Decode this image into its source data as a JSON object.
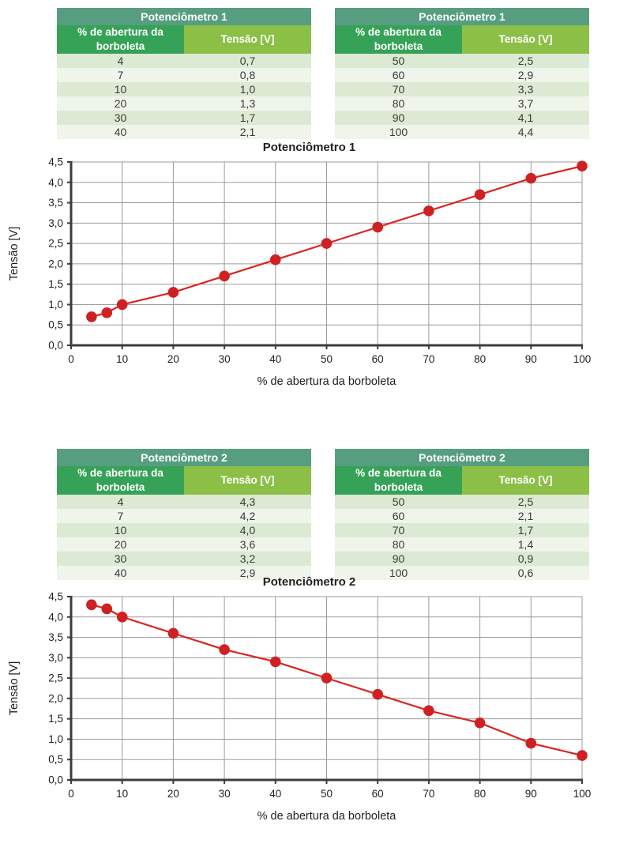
{
  "tables": [
    {
      "title": "Potenciômetro 1",
      "columns": [
        "% de abertura da borboleta",
        "Tensão [V]"
      ],
      "rows": [
        [
          "4",
          "0,7"
        ],
        [
          "7",
          "0,8"
        ],
        [
          "10",
          "1,0"
        ],
        [
          "20",
          "1,3"
        ],
        [
          "30",
          "1,7"
        ],
        [
          "40",
          "2,1"
        ]
      ]
    },
    {
      "title": "Potenciômetro 1",
      "columns": [
        "% de abertura da borboleta",
        "Tensão [V]"
      ],
      "rows": [
        [
          "50",
          "2,5"
        ],
        [
          "60",
          "2,9"
        ],
        [
          "70",
          "3,3"
        ],
        [
          "80",
          "3,7"
        ],
        [
          "90",
          "4,1"
        ],
        [
          "100",
          "4,4"
        ]
      ]
    },
    {
      "title": "Potenciômetro 2",
      "columns": [
        "% de abertura da borboleta",
        "Tensão [V]"
      ],
      "rows": [
        [
          "4",
          "4,3"
        ],
        [
          "7",
          "4,2"
        ],
        [
          "10",
          "4,0"
        ],
        [
          "20",
          "3,6"
        ],
        [
          "30",
          "3,2"
        ],
        [
          "40",
          "2,9"
        ]
      ]
    },
    {
      "title": "Potenciômetro 2",
      "columns": [
        "% de abertura da borboleta",
        "Tensão [V]"
      ],
      "rows": [
        [
          "50",
          "2,5"
        ],
        [
          "60",
          "2,1"
        ],
        [
          "70",
          "1,7"
        ],
        [
          "80",
          "1,4"
        ],
        [
          "90",
          "0,9"
        ],
        [
          "100",
          "0,6"
        ]
      ]
    }
  ],
  "chart_data": [
    {
      "type": "line",
      "title": "Potenciômetro 1",
      "xlabel": "% de abertura da borboleta",
      "ylabel": "Tensão [V]",
      "x": [
        4,
        7,
        10,
        20,
        30,
        40,
        50,
        60,
        70,
        80,
        90,
        100
      ],
      "y": [
        0.7,
        0.8,
        1.0,
        1.3,
        1.7,
        2.1,
        2.5,
        2.9,
        3.3,
        3.7,
        4.1,
        4.4
      ],
      "xlim": [
        0,
        100
      ],
      "ylim": [
        0,
        4.5
      ],
      "xtick_step": 10,
      "ytick_step": 0.5,
      "grid": true,
      "legend": "none",
      "decimal_separator": ","
    },
    {
      "type": "line",
      "title": "Potenciômetro 2",
      "xlabel": "% de abertura da borboleta",
      "ylabel": "Tensão [V]",
      "x": [
        4,
        7,
        10,
        20,
        30,
        40,
        50,
        60,
        70,
        80,
        90,
        100
      ],
      "y": [
        4.3,
        4.2,
        4.0,
        3.6,
        3.2,
        2.9,
        2.5,
        2.1,
        1.7,
        1.4,
        0.9,
        0.6
      ],
      "xlim": [
        0,
        100
      ],
      "ylim": [
        0,
        4.5
      ],
      "xtick_step": 10,
      "ytick_step": 0.5,
      "grid": true,
      "legend": "none",
      "decimal_separator": ","
    }
  ],
  "colors": {
    "series_line": "#da2420",
    "series_marker": "#cf2023",
    "grid_line": "#9b9b9b",
    "axis_line": "#3d3d3d",
    "tick_text": "#1f1f1f",
    "chart_title_text": "#1f1f1f",
    "table_title_bg": "#579e81",
    "table_col1_bg": "#36a257",
    "table_col2_bg": "#8cbf45",
    "table_row_odd_bg": "#dcead3",
    "table_row_even_bg": "#eff5ea"
  }
}
